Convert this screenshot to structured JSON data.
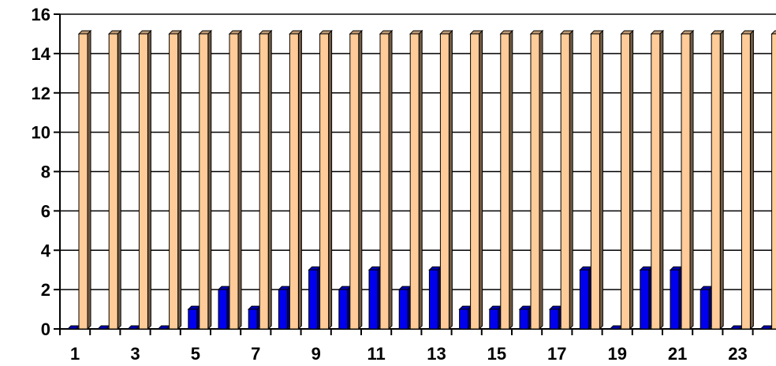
{
  "chart_data": {
    "type": "bar",
    "title": "",
    "xlabel": "",
    "ylabel": "",
    "ylim": [
      0,
      16
    ],
    "yticks": [
      "0",
      "2",
      "4",
      "6",
      "8",
      "10",
      "12",
      "14",
      "16"
    ],
    "categories": [
      "1",
      "2",
      "3",
      "4",
      "5",
      "6",
      "7",
      "8",
      "9",
      "10",
      "11",
      "12",
      "13",
      "14",
      "15",
      "16",
      "17",
      "18",
      "19",
      "20",
      "21",
      "22",
      "23",
      "24"
    ],
    "xtick_labels_shown": [
      "1",
      "3",
      "5",
      "7",
      "9",
      "11",
      "13",
      "15",
      "17",
      "19",
      "21",
      "23"
    ],
    "grid": true,
    "legend": "none",
    "style": "3d-clustered",
    "series": [
      {
        "color": "#0000ee",
        "values": [
          0,
          0,
          0,
          0,
          1,
          2,
          1,
          2,
          3,
          2,
          3,
          2,
          3,
          1,
          1,
          1,
          1,
          3,
          0,
          3,
          3,
          2,
          0,
          0
        ]
      },
      {
        "color": "#ffcc99",
        "values": [
          15,
          15,
          15,
          15,
          15,
          15,
          15,
          15,
          15,
          15,
          15,
          15,
          15,
          15,
          15,
          15,
          15,
          15,
          15,
          15,
          15,
          15,
          15,
          15
        ]
      }
    ]
  }
}
